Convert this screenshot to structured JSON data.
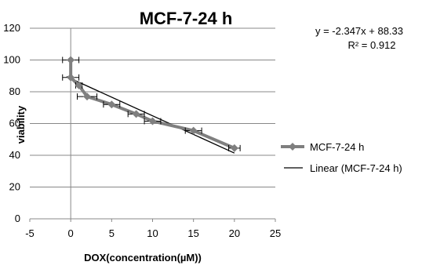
{
  "chart_data": {
    "type": "line",
    "title": "MCF-7-24 h",
    "xlabel": "DOX(concentration(µM))",
    "ylabel": "viability",
    "xlim": [
      -5,
      25
    ],
    "ylim": [
      0,
      120
    ],
    "x_ticks": [
      "-5",
      "0",
      "5",
      "10",
      "15",
      "20",
      "25"
    ],
    "y_ticks": [
      "0",
      "20",
      "40",
      "60",
      "80",
      "100",
      "120"
    ],
    "grid": "horizontal",
    "legend_position": "right",
    "equation": "y = -2.347x + 88.33",
    "r_squared": "R² = 0.912",
    "series": [
      {
        "name": "MCF-7-24 h",
        "kind": "data",
        "color": "#7f7f7f",
        "marker": "diamond",
        "x": [
          0,
          0,
          1,
          2,
          5,
          8,
          10,
          15,
          20
        ],
        "y": [
          100,
          89,
          84,
          77,
          72,
          66,
          61.5,
          55.5,
          44.5
        ],
        "x_error": [
          1,
          1,
          0.4,
          1.2,
          1,
          1,
          1,
          1,
          0.7
        ]
      },
      {
        "name": "Linear (MCF-7-24 h)",
        "kind": "trendline",
        "color": "#000000",
        "slope": -2.347,
        "intercept": 88.33,
        "x_range": [
          -0.5,
          20
        ]
      }
    ]
  }
}
